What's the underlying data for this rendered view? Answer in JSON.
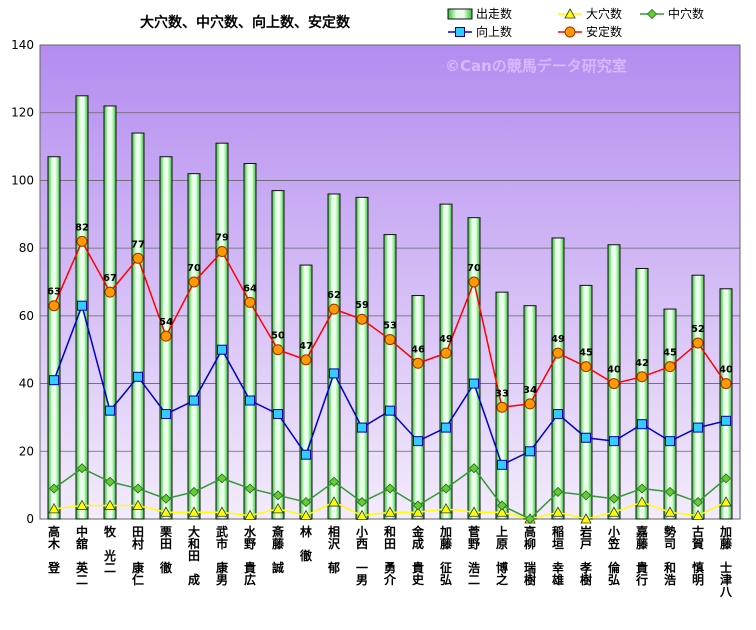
{
  "chart_data": {
    "type": "bar",
    "title": "大穴数、中穴数、向上数、安定数",
    "watermark": "©Canの競馬データ研究室",
    "ylim": [
      0,
      140
    ],
    "yticks": [
      0,
      20,
      40,
      60,
      80,
      100,
      120,
      140
    ],
    "categories": [
      "高木 登",
      "中舘 英二",
      "牧 光二",
      "田村 康仁",
      "栗田 徹",
      "大和田 成",
      "武市 康男",
      "水野 貴広",
      "斎藤 誠",
      "林 徹",
      "相沢 郁",
      "小西 一男",
      "和田 勇介",
      "金成 貴史",
      "加藤 征弘",
      "菅野 浩二",
      "上原 博之",
      "高柳 瑞樹",
      "稲垣 幸雄",
      "岩戸 孝樹",
      "小笠 倫弘",
      "嘉藤 貴行",
      "勢司 和浩",
      "古賀 慎明",
      "加藤 士津八"
    ],
    "series": [
      {
        "name": "出走数",
        "kind": "bar",
        "color": "#33cc33",
        "values": [
          107,
          125,
          122,
          114,
          107,
          102,
          111,
          105,
          97,
          75,
          96,
          95,
          84,
          66,
          93,
          89,
          67,
          63,
          83,
          69,
          81,
          74,
          62,
          72,
          68
        ]
      },
      {
        "name": "大穴数",
        "kind": "line",
        "color": "#ffff00",
        "values": [
          3,
          4,
          4,
          4,
          2,
          2,
          2,
          1,
          3,
          1,
          5,
          1,
          2,
          2,
          3,
          2,
          2,
          0,
          2,
          0,
          2,
          5,
          2,
          1,
          5
        ]
      },
      {
        "name": "中穴数",
        "kind": "line",
        "color": "#339933",
        "values": [
          9,
          15,
          11,
          9,
          6,
          8,
          12,
          9,
          7,
          5,
          11,
          5,
          9,
          4,
          9,
          15,
          4,
          0,
          8,
          7,
          6,
          9,
          8,
          5,
          12
        ]
      },
      {
        "name": "向上数",
        "kind": "line",
        "color": "#0000cc",
        "values": [
          41,
          63,
          32,
          42,
          31,
          35,
          50,
          35,
          31,
          19,
          43,
          27,
          32,
          23,
          27,
          40,
          16,
          20,
          31,
          24,
          23,
          28,
          23,
          27,
          29
        ]
      },
      {
        "name": "安定数",
        "kind": "line",
        "color": "#ff0000",
        "values": [
          63,
          82,
          67,
          77,
          54,
          70,
          79,
          64,
          50,
          47,
          62,
          59,
          53,
          46,
          49,
          70,
          33,
          34,
          49,
          45,
          40,
          42,
          45,
          52,
          40
        ],
        "labels": true
      }
    ],
    "grid": true,
    "legend_position": "top-right"
  }
}
